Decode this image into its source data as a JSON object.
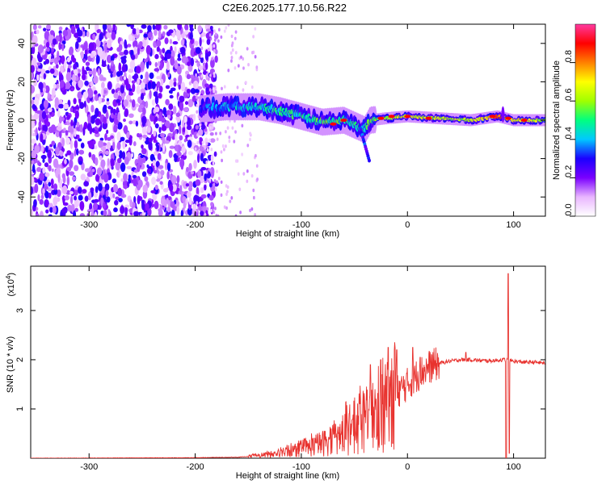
{
  "title": "C2E6.2025.177.10.56.R22",
  "chart_data": [
    {
      "type": "heatmap",
      "xlabel": "Height of straight line (km)",
      "ylabel": "Frequency (Hz)",
      "xlim": [
        -355,
        130
      ],
      "ylim": [
        -50,
        50
      ],
      "xticks": [
        -300,
        -200,
        -100,
        0,
        100
      ],
      "yticks": [
        -40,
        -20,
        0,
        20,
        40
      ],
      "colorbar": {
        "label": "Normalized spectral amplitude",
        "range": [
          0,
          1
        ],
        "ticks": [
          0.0,
          0.2,
          0.4,
          0.6,
          0.8
        ],
        "tick_labels": [
          "0.0",
          "0.2",
          "0.4",
          "0.6",
          "0.8"
        ],
        "colors": [
          "#ffffff",
          "#e9b6ff",
          "#7a00ff",
          "#1b00ff",
          "#00c8ff",
          "#00ff80",
          "#a0ff00",
          "#ffff00",
          "#ff8000",
          "#ff0000",
          "#ff3aa0"
        ]
      },
      "ridge": [
        {
          "x": -192,
          "y": 6,
          "a": 0.25
        },
        {
          "x": -170,
          "y": 7,
          "a": 0.3
        },
        {
          "x": -140,
          "y": 7,
          "a": 0.35
        },
        {
          "x": -120,
          "y": 5,
          "a": 0.4
        },
        {
          "x": -100,
          "y": 2,
          "a": 0.4
        },
        {
          "x": -80,
          "y": -1,
          "a": 0.45
        },
        {
          "x": -60,
          "y": 0,
          "a": 0.45
        },
        {
          "x": -40,
          "y": -5,
          "a": 0.4
        },
        {
          "x": -35,
          "y": 0,
          "a": 0.5
        },
        {
          "x": -20,
          "y": 1,
          "a": 0.55
        },
        {
          "x": 0,
          "y": 2,
          "a": 0.6
        },
        {
          "x": 30,
          "y": 1,
          "a": 0.55
        },
        {
          "x": 60,
          "y": 0,
          "a": 0.55
        },
        {
          "x": 85,
          "y": 2,
          "a": 0.75
        },
        {
          "x": 100,
          "y": 0,
          "a": 0.6
        },
        {
          "x": 130,
          "y": 0,
          "a": 0.55
        }
      ]
    },
    {
      "type": "line",
      "xlabel": "Height of straight line (km)",
      "ylabel": "SNR (10 * v/v)",
      "y_multiplier_label": "(x10",
      "y_multiplier_exp": "4",
      "y_multiplier_close": ")",
      "xlim": [
        -355,
        130
      ],
      "ylim": [
        0,
        3.9
      ],
      "xticks": [
        -300,
        -200,
        -100,
        0,
        100
      ],
      "yticks": [
        1,
        2,
        3
      ],
      "series": [
        {
          "color": "#e8322e",
          "x": [
            -355,
            -200,
            -160,
            -140,
            -120,
            -100,
            -80,
            -60,
            -40,
            -30,
            -20,
            -15,
            -10,
            0,
            10,
            20,
            30,
            40,
            50,
            60,
            70,
            80,
            90,
            95,
            100,
            110,
            120,
            130
          ],
          "y": [
            0.0,
            0.01,
            0.02,
            0.05,
            0.1,
            0.18,
            0.3,
            0.5,
            0.75,
            0.9,
            1.1,
            1.2,
            1.35,
            1.5,
            1.7,
            1.85,
            1.93,
            1.97,
            2.0,
            2.0,
            1.98,
            1.98,
            2.0,
            2.0,
            1.97,
            1.95,
            1.95,
            1.93
          ],
          "spikes": [
            {
              "x": -35,
              "y": 1.9
            },
            {
              "x": -25,
              "y": 2.0
            },
            {
              "x": -18,
              "y": 2.25
            },
            {
              "x": -10,
              "y": 2.2
            },
            {
              "x": 5,
              "y": 2.25
            },
            {
              "x": 12,
              "y": 2.05
            },
            {
              "x": 55,
              "y": 2.15
            },
            {
              "x": 93,
              "y": 3.9
            },
            {
              "x": 95,
              "y": 3.75
            }
          ],
          "dips": [
            {
              "x": -14,
              "y": 0.3
            },
            {
              "x": 93,
              "y": 0.0
            },
            {
              "x": 96,
              "y": 0.1
            }
          ]
        }
      ]
    }
  ]
}
